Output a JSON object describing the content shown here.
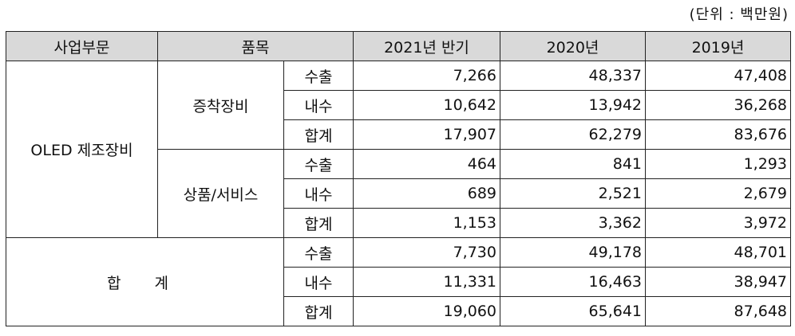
{
  "unit_label": "(단위 : 백만원)",
  "headers": {
    "segment": "사업부문",
    "item": "품목",
    "col1": "2021년 반기",
    "col2": "2020년",
    "col3": "2019년"
  },
  "segment_oled": "OLED 제조장비",
  "segment_total": "합 계",
  "groups": [
    {
      "name": "증착장비",
      "rows": [
        {
          "type": "수출",
          "v1": "7,266",
          "v2": "48,337",
          "v3": "47,408"
        },
        {
          "type": "내수",
          "v1": "10,642",
          "v2": "13,942",
          "v3": "36,268"
        },
        {
          "type": "합계",
          "v1": "17,907",
          "v2": "62,279",
          "v3": "83,676"
        }
      ]
    },
    {
      "name": "상품/서비스",
      "rows": [
        {
          "type": "수출",
          "v1": "464",
          "v2": "841",
          "v3": "1,293"
        },
        {
          "type": "내수",
          "v1": "689",
          "v2": "2,521",
          "v3": "2,679"
        },
        {
          "type": "합계",
          "v1": "1,153",
          "v2": "3,362",
          "v3": "3,972"
        }
      ]
    }
  ],
  "total_rows": [
    {
      "type": "수출",
      "v1": "7,730",
      "v2": "49,178",
      "v3": "48,701"
    },
    {
      "type": "내수",
      "v1": "11,331",
      "v2": "16,463",
      "v3": "38,947"
    },
    {
      "type": "합계",
      "v1": "19,060",
      "v2": "65,641",
      "v3": "87,648"
    }
  ]
}
